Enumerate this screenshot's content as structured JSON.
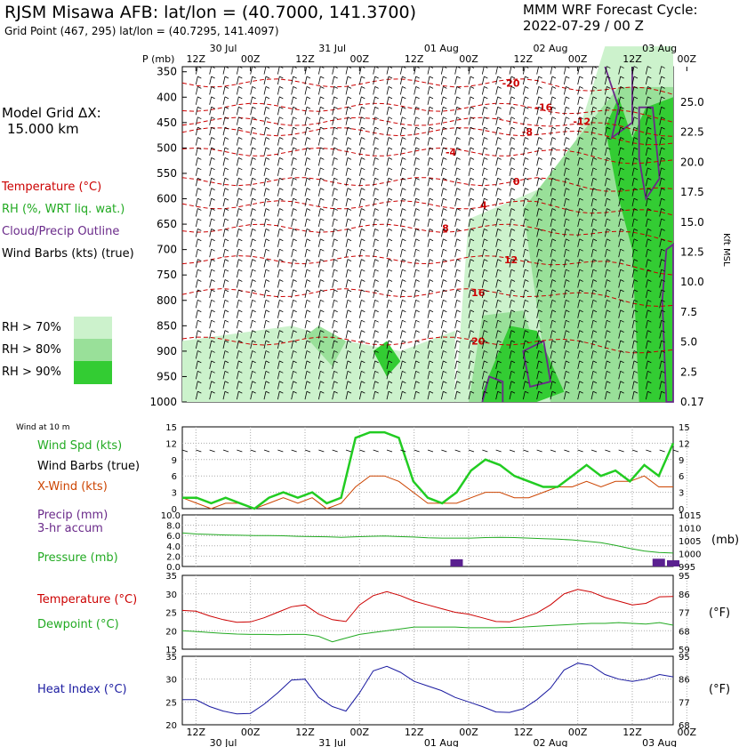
{
  "header": {
    "title": "RJSM Misawa AFB:  lat/lon = (40.7000, 141.3700)",
    "grid_point": "Grid Point (467, 295) lat/lon = (40.7295, 141.4097)",
    "cycle_label": "MMM WRF Forecast Cycle:",
    "cycle_value": "2022-07-29 / 00  Z"
  },
  "side": {
    "model_grid": "Model Grid ΔX:",
    "model_grid_value": "15.000 km",
    "temperature": "Temperature (°C)",
    "rh": "RH (%, WRT liq. wat.)",
    "cloud": "Cloud/Precip Outline",
    "wind_barbs": "Wind Barbs (kts) (true)",
    "rh_legend": [
      "RH > 70%",
      "RH > 80%",
      "RH > 90%"
    ],
    "wind10m": "Wind at 10 m",
    "wind_spd": "Wind Spd (kts)",
    "wind_barbs_true": "Wind Barbs (true)",
    "xwind": "X-Wind (kts)",
    "precip": "Precip (mm)",
    "precip_accum": "3-hr accum",
    "pressure": "Pressure (mb)",
    "temp2": "Temperature (°C)",
    "dewpoint": "Dewpoint (°C)",
    "heat_index": "Heat Index (°C)",
    "unit_mb": "(mb)",
    "unit_f1": "(°F)",
    "unit_f2": "(°F)",
    "kft": "Kft MSL"
  },
  "colors": {
    "temperature": "#cc0000",
    "rh70": "#ccf2cc",
    "rh80": "#99e099",
    "rh90": "#33cc33",
    "cloud": "#6a2a8a",
    "wind_spd": "#22cc22",
    "xwind": "#cc4400",
    "precip": "#5a2090",
    "pressure": "#22aa22",
    "dewpoint": "#22aa22",
    "heat_index": "#1a1aa0"
  },
  "chart_data": [
    {
      "type": "heatmap",
      "name": "cross-section",
      "ylabel": "P (mb)",
      "xlabel": "",
      "time_ticks": [
        "12Z",
        "00Z",
        "12Z",
        "00Z",
        "12Z",
        "00Z",
        "12Z",
        "00Z",
        "12Z",
        "00Z"
      ],
      "date_labels": [
        "30 Jul",
        "31 Jul",
        "01 Aug",
        "02 Aug",
        "03 Aug"
      ],
      "bottom_date_labels": [
        "30 Jul",
        "31 Jul",
        "01 Aug",
        "02 Aug",
        "03 Aug"
      ],
      "pressure_levels": [
        350,
        400,
        450,
        500,
        550,
        600,
        650,
        700,
        750,
        800,
        850,
        900,
        950,
        1000
      ],
      "kft_ticks": [
        "25.0",
        "22.5",
        "20.0",
        "17.5",
        "15.0",
        "12.5",
        "10.0",
        "7.5",
        "5.0",
        "2.5",
        "0.17"
      ],
      "temp_contour_labels": [
        {
          "v": "-20",
          "t": 5.4,
          "p": 372
        },
        {
          "v": "-16",
          "t": 6.0,
          "p": 420
        },
        {
          "v": "-12",
          "t": 6.7,
          "p": 448
        },
        {
          "v": "-8",
          "t": 5.7,
          "p": 468
        },
        {
          "v": "-4",
          "t": 4.3,
          "p": 508
        },
        {
          "v": "0",
          "t": 5.5,
          "p": 566
        },
        {
          "v": "4",
          "t": 4.9,
          "p": 612
        },
        {
          "v": "8",
          "t": 4.2,
          "p": 658
        },
        {
          "v": "12",
          "t": 5.4,
          "p": 720
        },
        {
          "v": "16",
          "t": 4.8,
          "p": 785
        },
        {
          "v": "20",
          "t": 4.8,
          "p": 880
        }
      ]
    },
    {
      "type": "line",
      "name": "wind",
      "y_ticks": [
        0,
        3,
        6,
        9,
        12,
        15
      ],
      "ylim": [
        0,
        15
      ],
      "series": [
        {
          "name": "Wind Spd (kts)",
          "values": [
            2,
            2,
            1,
            2,
            1,
            0,
            2,
            3,
            2,
            3,
            1,
            2,
            13,
            14,
            14,
            13,
            5,
            2,
            1,
            3,
            7,
            9,
            8,
            6,
            5,
            4,
            4,
            6,
            8,
            6,
            7,
            5,
            8,
            6,
            12
          ]
        },
        {
          "name": "X-Wind (kts)",
          "values": [
            2,
            1,
            0,
            1,
            1,
            0,
            1,
            2,
            1,
            2,
            0,
            1,
            4,
            6,
            6,
            5,
            3,
            1,
            1,
            1,
            2,
            3,
            3,
            2,
            2,
            3,
            4,
            4,
            5,
            4,
            5,
            5,
            6,
            4,
            4
          ]
        }
      ]
    },
    {
      "type": "line",
      "name": "pressure-precip",
      "y_ticks_left": [
        "0.0",
        "2.0",
        "4.0",
        "6.0",
        "8.0",
        "10.0"
      ],
      "y_ticks_right": [
        "995",
        "1000",
        "1005",
        "1010",
        "1015"
      ],
      "pressure_ylim": [
        995,
        1015
      ],
      "pressure_values": [
        1008,
        1007.6,
        1007.4,
        1007.2,
        1007.1,
        1007.0,
        1007.0,
        1006.9,
        1006.7,
        1006.6,
        1006.5,
        1006.3,
        1006.5,
        1006.7,
        1006.8,
        1006.6,
        1006.4,
        1006.1,
        1006.0,
        1006.0,
        1006.0,
        1006.2,
        1006.3,
        1006.2,
        1006.0,
        1005.8,
        1005.6,
        1005.3,
        1004.8,
        1004.2,
        1003.2,
        1002.0,
        1001.0,
        1000.4,
        1000.2
      ],
      "precip_values": [
        0,
        0,
        0,
        0,
        0,
        0,
        0,
        0,
        0,
        0,
        0,
        0,
        0,
        0,
        0,
        0,
        0,
        0,
        0,
        1.4,
        0,
        0,
        0,
        0,
        0,
        0,
        0,
        0,
        0,
        0,
        0,
        0,
        0,
        1.5,
        1.2
      ]
    },
    {
      "type": "line",
      "name": "temperature-dewpoint",
      "y_ticks_left": [
        "15",
        "20",
        "25",
        "30",
        "35"
      ],
      "y_ticks_right": [
        "59",
        "68",
        "77",
        "86",
        "95"
      ],
      "ylim": [
        15,
        35
      ],
      "series": [
        {
          "name": "Temperature (°C)",
          "values": [
            25.5,
            25.3,
            24,
            23,
            22.3,
            22.4,
            23.5,
            25,
            26.5,
            27,
            24.5,
            23,
            22.5,
            27,
            29.5,
            30.6,
            29.5,
            28,
            27,
            26,
            25,
            24.5,
            23.5,
            22.5,
            22.4,
            23.5,
            24.8,
            27,
            30,
            31.2,
            30.5,
            29,
            28,
            27,
            27.4,
            29.2,
            29.3
          ]
        },
        {
          "name": "Dewpoint (°C)",
          "values": [
            20,
            19.8,
            19.5,
            19.3,
            19.1,
            19,
            19,
            18.9,
            19,
            19,
            18.5,
            17,
            18,
            19,
            19.5,
            20,
            20.5,
            21,
            21,
            21,
            21,
            20.8,
            20.8,
            20.8,
            20.9,
            21,
            21.2,
            21.4,
            21.6,
            21.8,
            22,
            22,
            22.2,
            22,
            21.8,
            22.2,
            21.5
          ]
        }
      ]
    },
    {
      "type": "line",
      "name": "heat-index",
      "y_ticks_left": [
        "20",
        "25",
        "30",
        "35"
      ],
      "y_ticks_right": [
        "68",
        "77",
        "86",
        "95"
      ],
      "ylim": [
        20,
        35
      ],
      "series": [
        {
          "name": "Heat Index (°C)",
          "values": [
            25.5,
            25.5,
            24,
            23,
            22.4,
            22.5,
            24.5,
            27,
            29.8,
            30,
            26,
            24,
            23,
            27,
            31.8,
            32.8,
            31.5,
            29.5,
            28.5,
            27.5,
            26,
            25,
            24,
            22.8,
            22.7,
            23.5,
            25.5,
            28,
            32,
            33.5,
            33,
            31,
            30,
            29.5,
            30,
            31,
            30.5
          ]
        }
      ]
    }
  ]
}
